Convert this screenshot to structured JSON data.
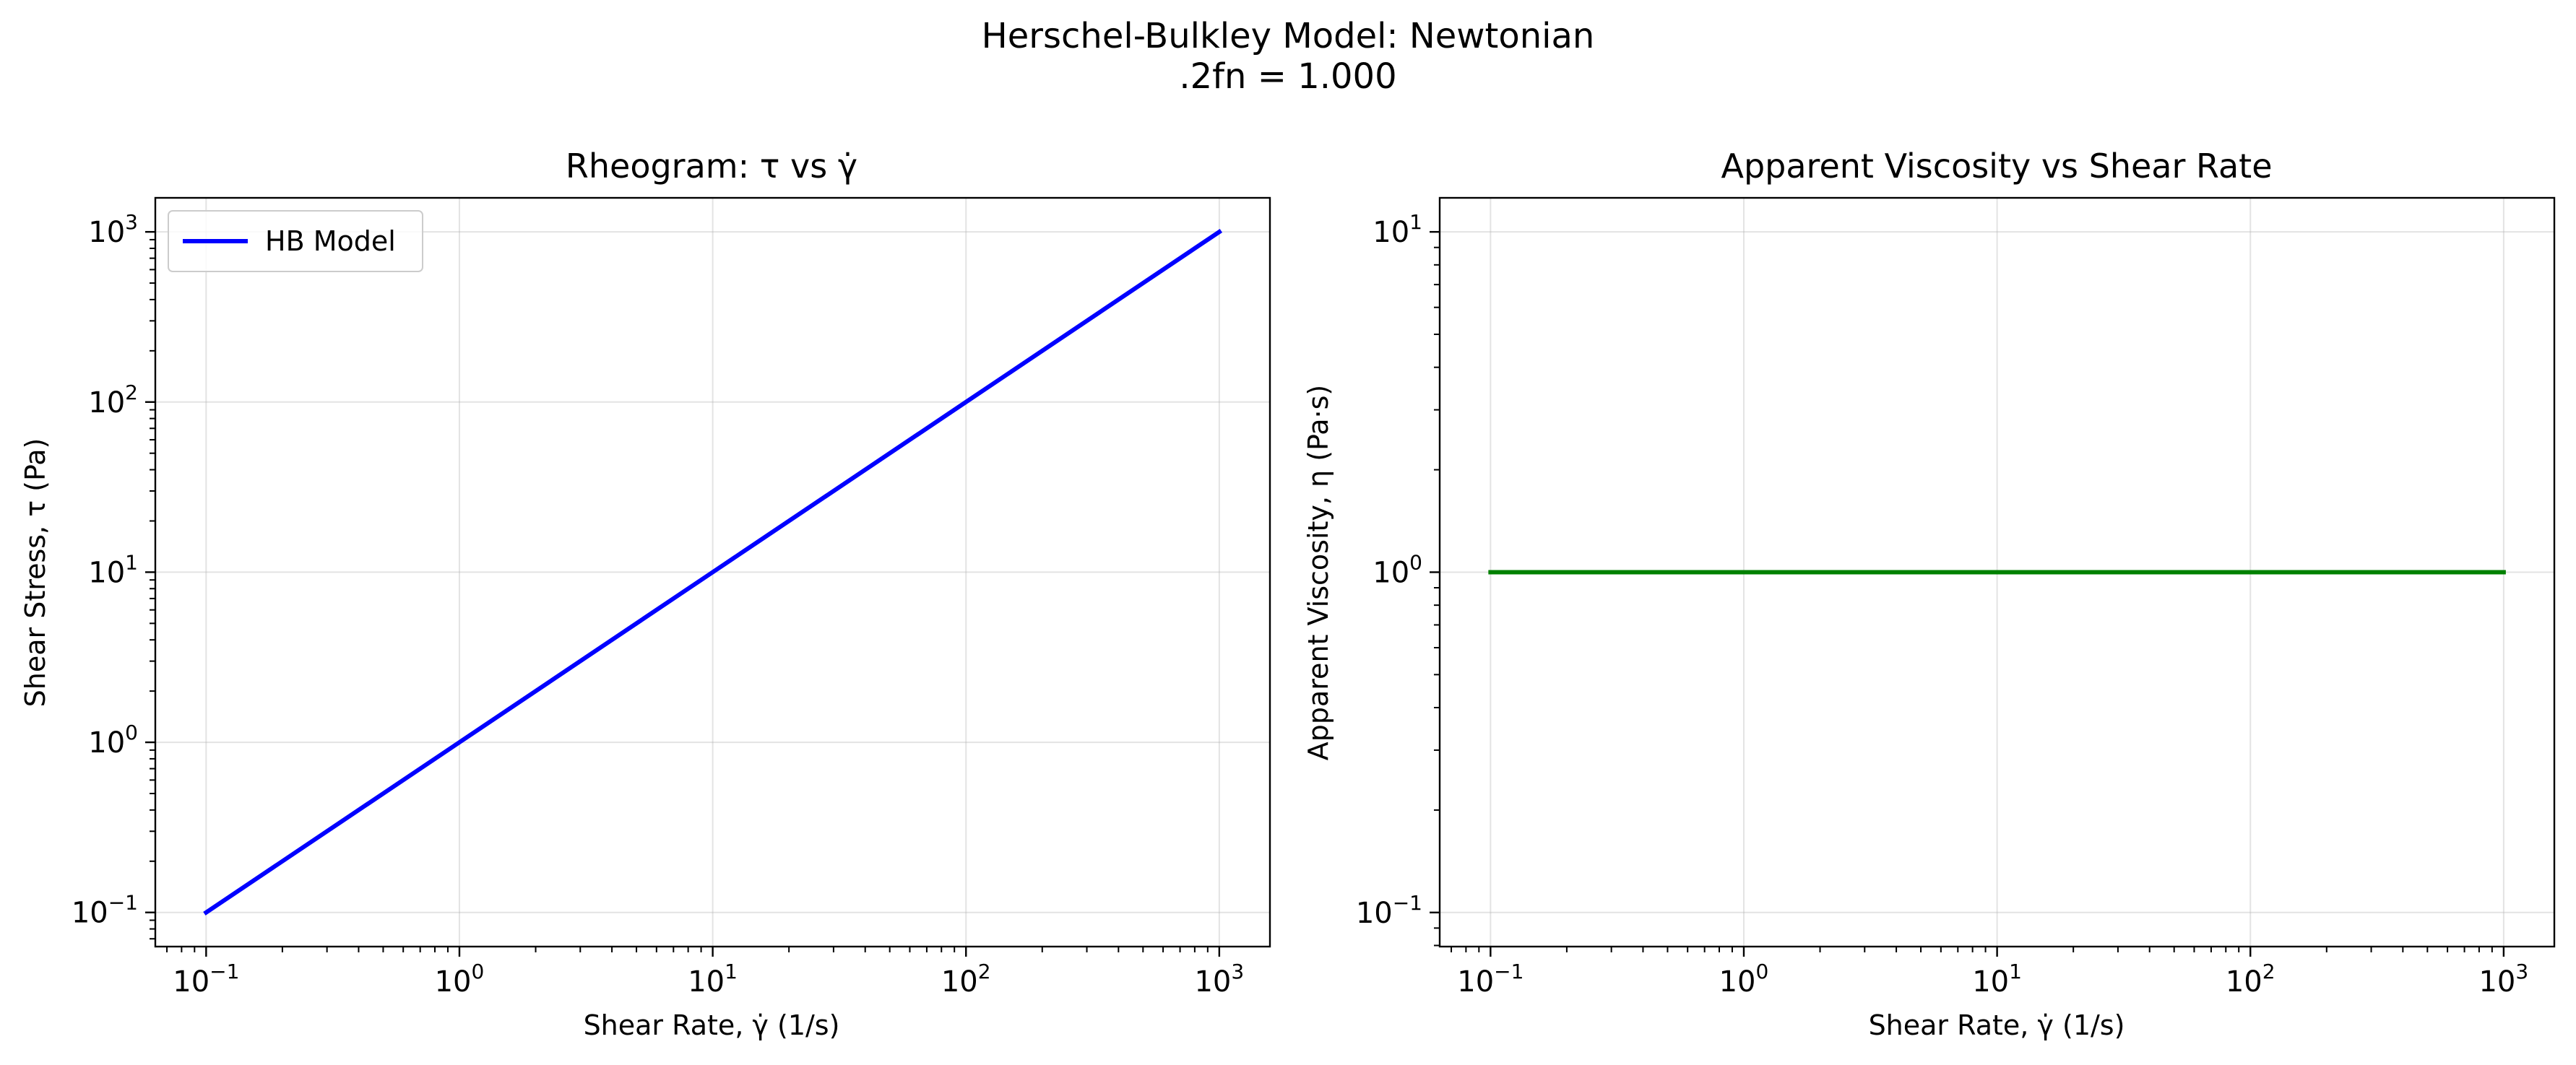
{
  "figure": {
    "suptitle_line1": "Herschel-Bulkley Model: Newtonian",
    "suptitle_line2": ".2fn = 1.000"
  },
  "chart_data": [
    {
      "type": "line",
      "title": "Rheogram: τ vs γ̇",
      "xlabel": "Shear Rate, γ̇ (1/s)",
      "ylabel": "Shear Stress, τ (Pa)",
      "xscale": "log",
      "yscale": "log",
      "xlim": [
        0.063,
        1585
      ],
      "ylim": [
        0.063,
        1585
      ],
      "xticks": [
        0.1,
        1,
        10,
        100,
        1000
      ],
      "yticks": [
        0.1,
        1,
        10,
        100,
        1000
      ],
      "grid": true,
      "legend": "upper left",
      "series": [
        {
          "name": "HB Model",
          "color": "#0000ff",
          "x": [
            0.1,
            1,
            10,
            100,
            1000
          ],
          "y": [
            0.1,
            1,
            10,
            100,
            1000
          ]
        }
      ]
    },
    {
      "type": "line",
      "title": "Apparent Viscosity vs Shear Rate",
      "xlabel": "Shear Rate, γ̇ (1/s)",
      "ylabel": "Apparent Viscosity, η (Pa·s)",
      "xscale": "log",
      "yscale": "log",
      "xlim": [
        0.063,
        1585
      ],
      "ylim": [
        0.0794,
        12.59
      ],
      "xticks": [
        0.1,
        1,
        10,
        100,
        1000
      ],
      "yticks": [
        0.1,
        1,
        10
      ],
      "grid": true,
      "series": [
        {
          "color": "#008000",
          "x": [
            0.1,
            1,
            10,
            100,
            1000
          ],
          "y": [
            1,
            1,
            1,
            1,
            1
          ]
        }
      ]
    }
  ]
}
